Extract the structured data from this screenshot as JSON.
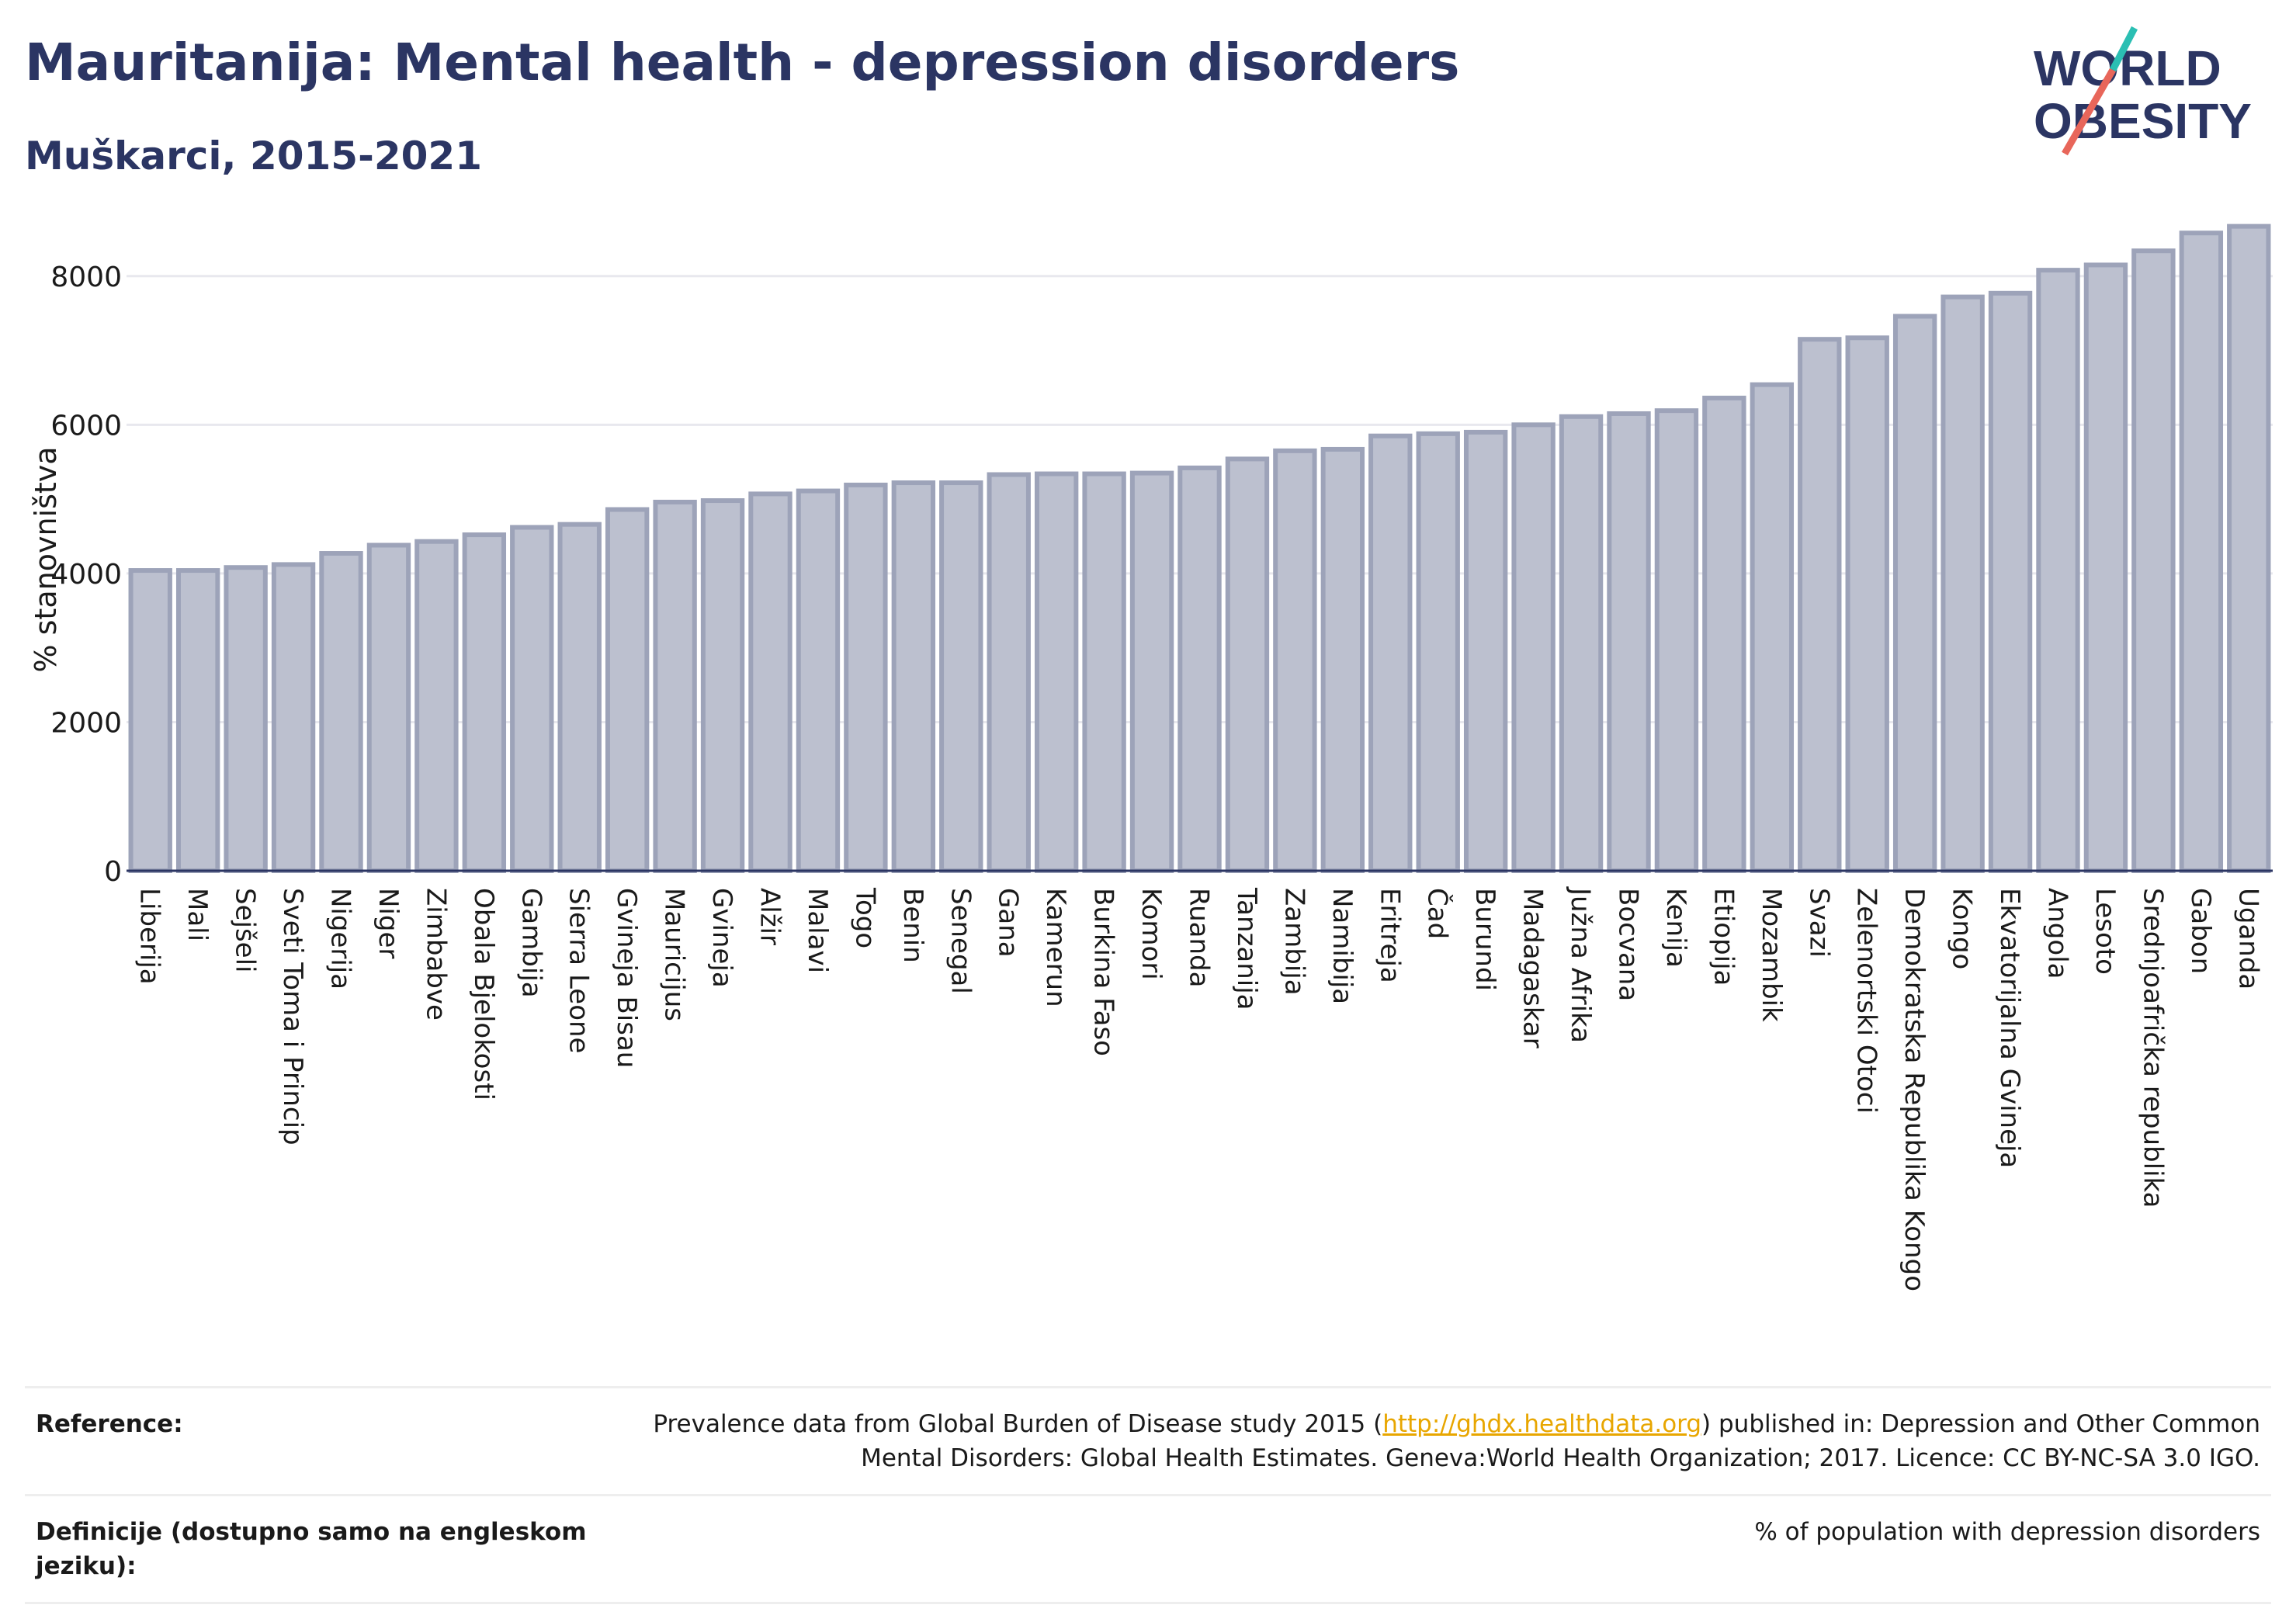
{
  "title": "Mauritanija: Mental health - depression disorders",
  "subtitle": "Muškarci, 2015-2021",
  "logo": {
    "line1": "WORLD",
    "line2": "OBESITY"
  },
  "colors": {
    "title": "#2b3563",
    "bar_fill": "#bcc0cf",
    "bar_stroke": "#9da3b9",
    "link": "#e8a600",
    "logo_teal": "#2bbfb3",
    "logo_coral": "#e8665a"
  },
  "chart_data": {
    "type": "bar",
    "ylabel": "% stanovništva",
    "xlabel": "",
    "ylim": [
      0,
      9000
    ],
    "yticks": [
      0,
      2000,
      4000,
      6000,
      8000
    ],
    "grid": true,
    "categories": [
      "Liberija",
      "Mali",
      "Sejšeli",
      "Sveti Toma i Princip",
      "Nigerija",
      "Niger",
      "Zimbabve",
      "Obala Bjelokosti",
      "Gambija",
      "Sierra Leone",
      "Gvineja Bisau",
      "Mauricijus",
      "Gvineja",
      "Alžir",
      "Malavi",
      "Togo",
      "Benin",
      "Senegal",
      "Gana",
      "Kamerun",
      "Burkina Faso",
      "Komori",
      "Ruanda",
      "Tanzanija",
      "Zambija",
      "Namibija",
      "Eritreja",
      "Čad",
      "Burundi",
      "Madagaskar",
      "Južna Afrika",
      "Bocvana",
      "Kenija",
      "Etiopija",
      "Mozambik",
      "Svazi",
      "Zelenortski Otoci",
      "Demokratska Republika Kongo",
      "Kongo",
      "Ekvatorijalna Gvineja",
      "Angola",
      "Lesoto",
      "Srednjoafrička republika",
      "Gabon",
      "Uganda"
    ],
    "values": [
      4040,
      4040,
      4080,
      4120,
      4270,
      4380,
      4430,
      4520,
      4620,
      4660,
      4860,
      4960,
      4980,
      5070,
      5110,
      5190,
      5220,
      5220,
      5330,
      5340,
      5340,
      5350,
      5420,
      5540,
      5650,
      5670,
      5850,
      5880,
      5900,
      6000,
      6110,
      6150,
      6190,
      6360,
      6540,
      7150,
      7170,
      7460,
      7720,
      7770,
      8080,
      8150,
      8340,
      8580,
      8670
    ]
  },
  "reference": {
    "label": "Reference:",
    "text_before": "Prevalence data from Global Burden of Disease study 2015 (",
    "link": "http://ghdx.healthdata.org",
    "text_after": ") published in: Depression and Other Common Mental Disorders: Global Health Estimates. Geneva:World Health Organization; 2017. Licence: CC BY-NC-SA 3.0 IGO."
  },
  "definition": {
    "label": "Definicije (dostupno samo na engleskom jeziku):",
    "text": "% of population with depression disorders"
  }
}
